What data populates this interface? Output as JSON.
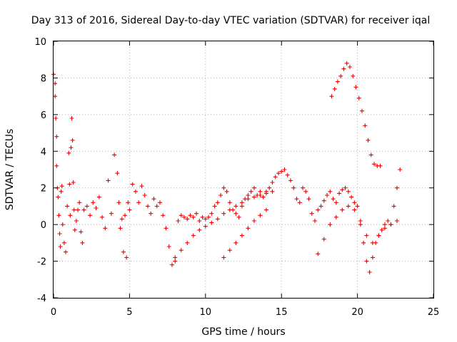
{
  "chart_data": {
    "type": "scatter",
    "title": "Day 313 of 2016, Sidereal Day-to-day VTEC variation (SDTVAR) for receiver iqal",
    "xlabel": "GPS time / hours",
    "ylabel": "SDTVAR / TECUs",
    "xlim": [
      0,
      25
    ],
    "ylim": [
      -4,
      10
    ],
    "xticks": [
      "0",
      "5",
      "10",
      "15",
      "20",
      "25"
    ],
    "yticks": [
      "-4",
      "-2",
      "0",
      "2",
      "4",
      "6",
      "8",
      "10"
    ],
    "grid": true,
    "marker": "+",
    "color": "#ee0000",
    "series": [
      {
        "name": "SDTVAR",
        "x": [
          0.0,
          0.1,
          0.1,
          0.15,
          0.2,
          0.2,
          0.25,
          0.3,
          0.35,
          0.4,
          0.45,
          0.5,
          0.55,
          0.6,
          0.7,
          0.8,
          0.9,
          1.0,
          1.05,
          1.1,
          1.15,
          1.2,
          1.25,
          1.3,
          1.35,
          1.4,
          1.5,
          1.6,
          1.7,
          1.8,
          1.9,
          2.0,
          2.2,
          2.4,
          2.6,
          2.8,
          3.0,
          3.2,
          3.4,
          3.6,
          3.8,
          4.0,
          4.2,
          4.3,
          4.4,
          4.5,
          4.6,
          4.7,
          4.8,
          4.9,
          5.0,
          5.2,
          5.4,
          5.6,
          5.8,
          6.0,
          6.2,
          6.4,
          6.6,
          6.8,
          7.0,
          7.2,
          7.4,
          7.6,
          7.8,
          8.0,
          8.2,
          8.4,
          8.6,
          8.8,
          9.0,
          9.2,
          9.4,
          9.6,
          9.8,
          10.0,
          10.2,
          10.4,
          10.6,
          10.8,
          11.0,
          11.2,
          11.4,
          11.6,
          11.8,
          12.0,
          12.2,
          12.4,
          12.6,
          12.8,
          13.0,
          13.2,
          13.4,
          13.6,
          13.8,
          14.0,
          14.2,
          14.4,
          14.6,
          14.8,
          15.0,
          15.2,
          15.4,
          15.6,
          15.8,
          16.0,
          16.2,
          16.4,
          16.6,
          16.8,
          17.0,
          17.2,
          17.4,
          17.6,
          17.8,
          18.0,
          18.2,
          18.4,
          18.6,
          18.8,
          19.0,
          19.2,
          19.4,
          19.6,
          19.8,
          20.0,
          20.2,
          20.4,
          20.6,
          20.8,
          21.0,
          21.2,
          21.4,
          21.6,
          21.8,
          22.0,
          22.2,
          22.4,
          22.6,
          22.8,
          18.3,
          18.5,
          18.7,
          18.9,
          19.1,
          19.3,
          19.5,
          19.7,
          19.9,
          20.1,
          20.3,
          20.5,
          20.7,
          20.9,
          21.1,
          21.3,
          21.5,
          8.0,
          8.4,
          8.8,
          9.2,
          9.6,
          10.0,
          10.4,
          10.8,
          11.2,
          11.6,
          12.0,
          12.4,
          12.8,
          13.2,
          13.6,
          14.0,
          14.4,
          11.2,
          11.6,
          12.0,
          12.4,
          12.8,
          13.2,
          13.6,
          14.0,
          17.4,
          17.8,
          18.2,
          18.6,
          19.0,
          19.4,
          19.8,
          20.2,
          20.6,
          21.0,
          21.4,
          21.8,
          22.2,
          22.6
        ],
        "y": [
          8.2,
          7.7,
          7.0,
          5.8,
          4.8,
          3.2,
          2.0,
          1.5,
          0.5,
          -0.5,
          -1.2,
          1.8,
          2.1,
          0.0,
          -1.0,
          -1.5,
          1.0,
          3.9,
          2.2,
          0.5,
          4.2,
          5.8,
          4.6,
          2.3,
          0.8,
          -0.3,
          0.2,
          0.8,
          1.2,
          -0.4,
          -1.0,
          0.8,
          1.0,
          0.5,
          1.2,
          0.9,
          1.5,
          0.4,
          -0.2,
          2.4,
          0.6,
          3.8,
          2.8,
          1.2,
          -0.2,
          0.3,
          -1.5,
          0.5,
          -1.8,
          1.2,
          0.8,
          2.2,
          1.8,
          1.2,
          2.1,
          1.6,
          1.0,
          0.6,
          1.4,
          1.0,
          1.2,
          0.5,
          -0.2,
          -1.2,
          -2.2,
          -1.8,
          0.2,
          0.5,
          0.4,
          0.3,
          0.5,
          0.4,
          0.6,
          0.2,
          0.4,
          0.3,
          0.4,
          0.6,
          1.0,
          1.2,
          1.6,
          2.0,
          1.8,
          1.2,
          0.8,
          0.6,
          0.4,
          1.0,
          1.4,
          1.6,
          1.8,
          2.0,
          1.6,
          1.8,
          1.5,
          1.8,
          2.0,
          2.3,
          2.6,
          2.8,
          2.9,
          3.0,
          2.7,
          2.4,
          2.0,
          1.4,
          1.2,
          2.0,
          1.8,
          1.4,
          0.6,
          0.2,
          0.8,
          1.0,
          1.3,
          1.6,
          1.8,
          1.4,
          1.2,
          1.7,
          1.9,
          2.0,
          1.8,
          1.5,
          1.2,
          1.0,
          0.0,
          -1.0,
          -2.0,
          -2.6,
          -1.8,
          -1.0,
          -0.6,
          -0.3,
          0.0,
          0.2,
          0.0,
          1.0,
          2.0,
          3.0,
          7.0,
          7.4,
          7.8,
          8.1,
          8.5,
          8.8,
          8.6,
          8.1,
          7.5,
          6.9,
          6.2,
          5.4,
          4.6,
          3.8,
          3.3,
          3.2,
          3.2,
          -2.0,
          -1.4,
          -1.0,
          -0.6,
          -0.3,
          -0.1,
          0.1,
          0.3,
          0.6,
          0.8,
          1.0,
          1.2,
          1.4,
          1.5,
          1.6,
          1.7,
          1.8,
          -1.8,
          -1.4,
          -1.0,
          -0.6,
          -0.2,
          0.2,
          0.5,
          0.8,
          -1.6,
          -0.8,
          0.0,
          0.4,
          0.8,
          1.0,
          0.8,
          0.2,
          -0.6,
          -1.0,
          -0.6,
          -0.2,
          0.0,
          0.2
        ]
      }
    ]
  }
}
